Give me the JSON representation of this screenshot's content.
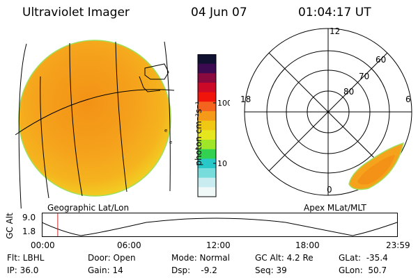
{
  "header": {
    "title": "Ultraviolet Imager",
    "date": "04 Jun 07",
    "time": "01:04:17 UT"
  },
  "left_panel": {
    "caption": "Geographic Lat/Lon",
    "marks": [
      "e",
      "e"
    ]
  },
  "colorbar": {
    "unit_label": "photon cm⁻²s⁻¹",
    "ticks": [
      "100",
      "10"
    ],
    "colors_top_to_bottom": [
      "#101030",
      "#3c0a50",
      "#8a0a40",
      "#cc0a28",
      "#f0140a",
      "#f5641e",
      "#f59a18",
      "#f0c814",
      "#e6e61e",
      "#a0e628",
      "#32d250",
      "#28c8c8",
      "#78dcdc",
      "#c8ecf0",
      "#f0f8f8"
    ]
  },
  "right_panel": {
    "caption": "Apex MLat/MLT",
    "mlt_labels": {
      "top": "12",
      "left": "18",
      "right": "6",
      "bottom": "0"
    },
    "lat_labels": [
      "60",
      "70",
      "80"
    ]
  },
  "timeline": {
    "ylabel": "GC Alt",
    "y_ticks": [
      "9.0",
      "1.8"
    ],
    "x_ticks": [
      "00:00",
      "06:00",
      "12:00",
      "18:00",
      "23:59"
    ],
    "current_time_fraction": 0.045
  },
  "info": {
    "filter": "Flt: LBHL",
    "ip": "IP: 36.0",
    "door": "Door: Open",
    "gain": "Gain: 14",
    "mode": "Mode: Normal",
    "dsp": "Dsp:    -9.2",
    "gc_alt": "GC Alt: 4.2 Re",
    "seq": "Seq: 39",
    "glat": "GLat:  -35.4",
    "glon": "GLon:  50.7"
  },
  "colors": {
    "disk_base": "#f5a21c",
    "disk_edge": "#f0d020",
    "oval_fill": "#f5a21c",
    "current_time_marker": "#cc2222"
  }
}
